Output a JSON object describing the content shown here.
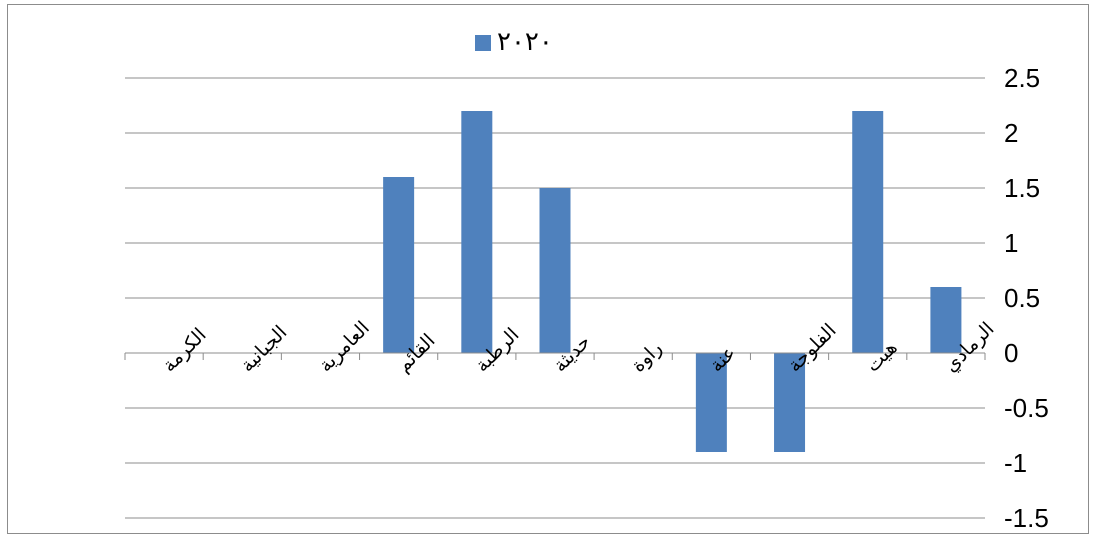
{
  "chart_data": {
    "type": "bar",
    "categories": [
      "الكرمة",
      "الجبانية",
      "العامرية",
      "القائم",
      "الرطبة",
      "حديثة",
      "راوة",
      "عنة",
      "الفلوجة",
      "هيت",
      "الرمادي"
    ],
    "series": [
      {
        "name": "٢٠٢٠",
        "values": [
          null,
          null,
          null,
          1.6,
          2.2,
          1.5,
          null,
          -0.9,
          -0.9,
          2.2,
          0.6
        ]
      }
    ],
    "ylim": [
      -1.5,
      2.5
    ],
    "yticks": [
      2.5,
      2,
      1.5,
      1,
      0.5,
      0,
      -0.5,
      -1,
      -1.5
    ],
    "ytick_labels": [
      "2.5",
      "2",
      "1.5",
      "1",
      "0.5",
      "0",
      "-0.5",
      "-1",
      "-1.5"
    ],
    "y_axis_position": "right",
    "grid": true,
    "legend_position": "top",
    "colors": {
      "bar": "#4f81bd",
      "grid": "#8c8c8c",
      "axis": "#8c8c8c"
    }
  }
}
